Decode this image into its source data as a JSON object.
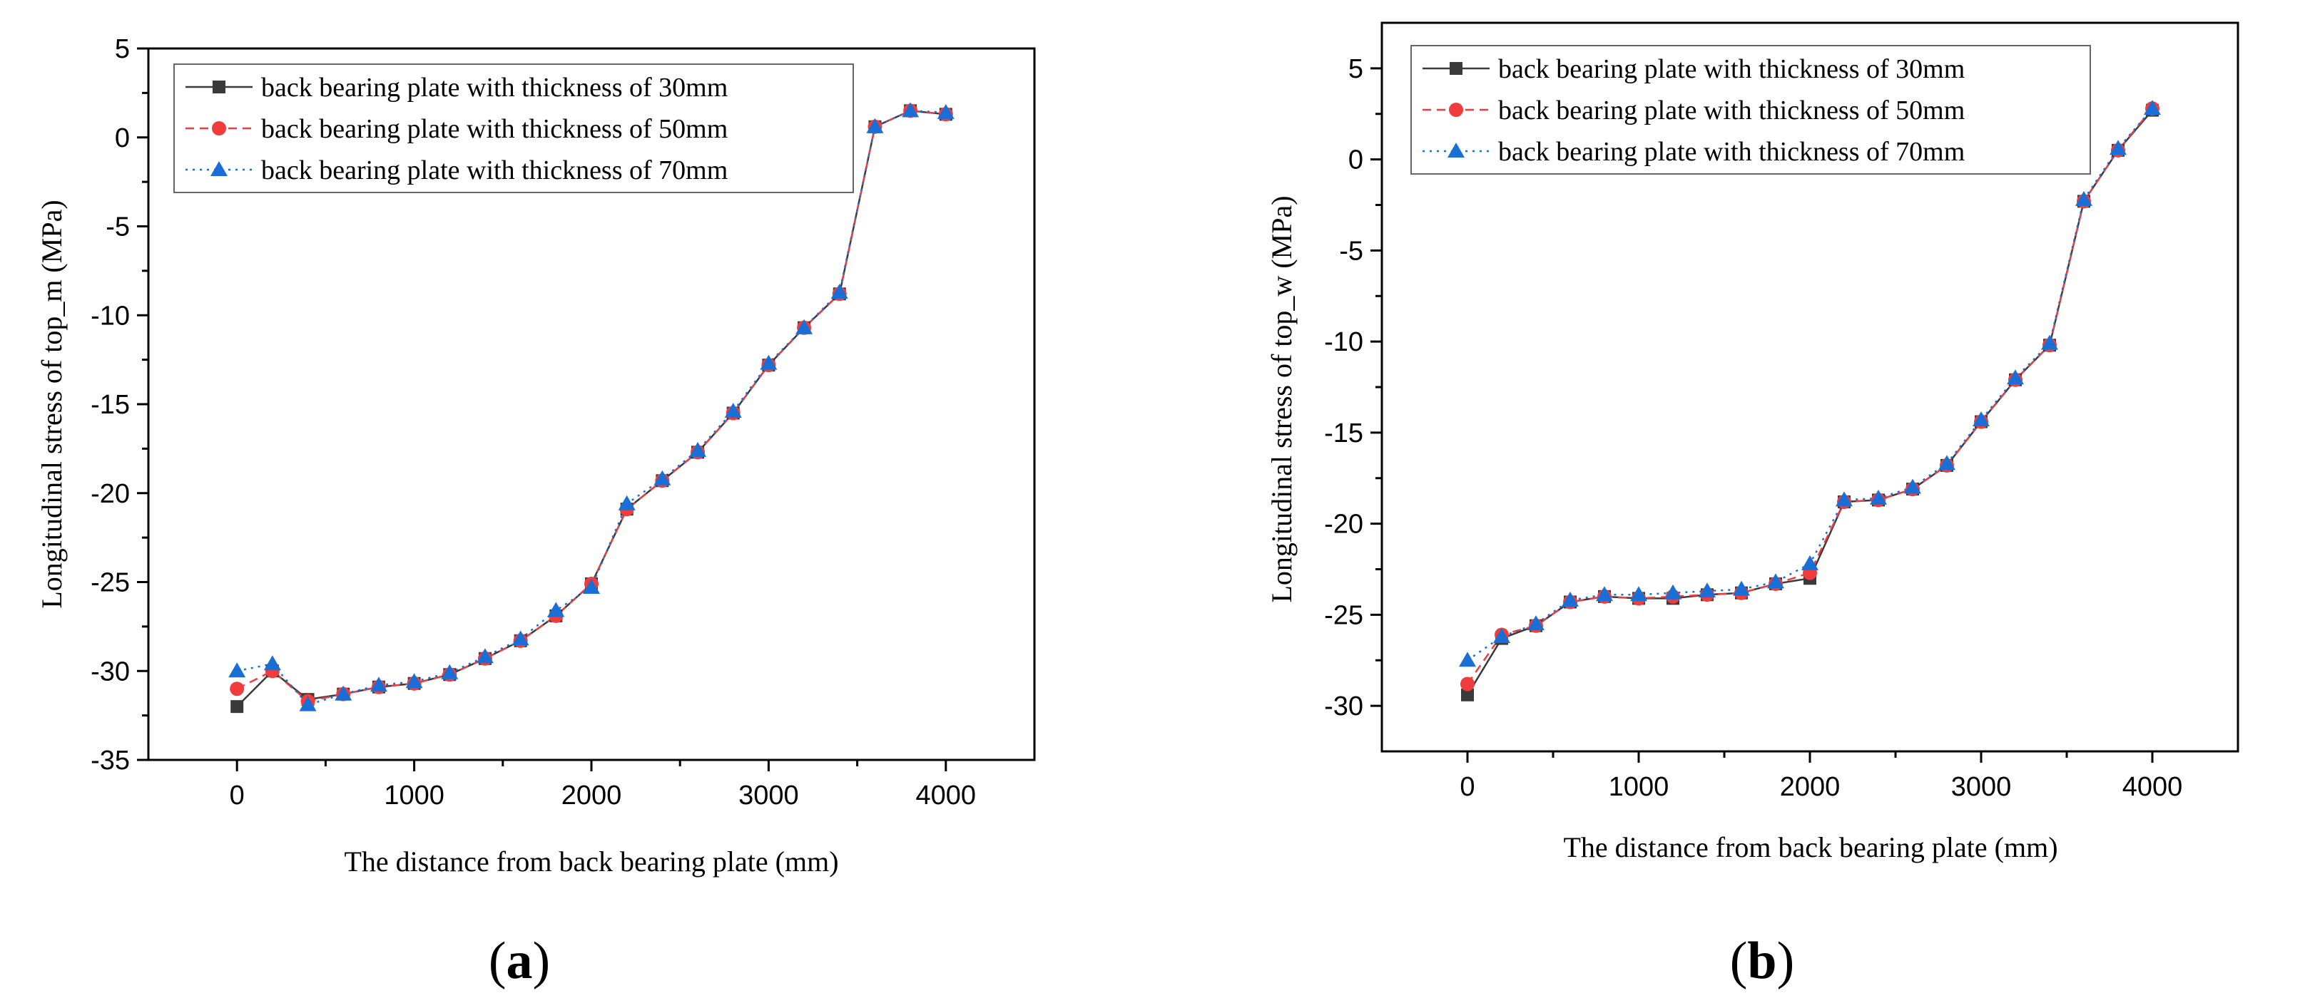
{
  "chart_data": [
    {
      "type": "line",
      "id": "a",
      "caption_letter": "a",
      "caption_open": "(",
      "caption_close": ")",
      "xlabel": "The distance from back bearing plate (mm)",
      "ylabel": "Longitudinal stress of top_m (MPa)",
      "xlim": [
        -500,
        4500
      ],
      "ylim": [
        -35,
        5
      ],
      "xticks": [
        0,
        1000,
        2000,
        3000,
        4000
      ],
      "yticks": [
        5,
        0,
        -5,
        -10,
        -15,
        -20,
        -25,
        -30,
        -35
      ],
      "x": [
        0,
        200,
        400,
        600,
        800,
        1000,
        1200,
        1400,
        1600,
        1800,
        2000,
        2200,
        2400,
        2600,
        2800,
        3000,
        3200,
        3400,
        3600,
        3800,
        4000
      ],
      "series": [
        {
          "name": "back bearing plate with thickness of 30mm",
          "color": "#3a3a3a",
          "marker": "square",
          "dash": "",
          "values": [
            -32.0,
            -30.0,
            -31.6,
            -31.3,
            -30.9,
            -30.7,
            -30.2,
            -29.3,
            -28.3,
            -26.9,
            -25.1,
            -20.9,
            -19.3,
            -17.7,
            -15.5,
            -12.8,
            -10.7,
            -8.8,
            0.6,
            1.5,
            1.3
          ]
        },
        {
          "name": "back bearing plate with thickness of 50mm",
          "color": "#f03c3c",
          "marker": "circle",
          "dash": "12,8",
          "values": [
            -31.0,
            -30.0,
            -31.7,
            -31.3,
            -30.9,
            -30.7,
            -30.2,
            -29.3,
            -28.3,
            -26.9,
            -25.1,
            -20.9,
            -19.3,
            -17.7,
            -15.5,
            -12.8,
            -10.7,
            -8.8,
            0.6,
            1.5,
            1.3
          ]
        },
        {
          "name": "back bearing plate with thickness of 70mm",
          "color": "#1a6fd6",
          "marker": "triangle",
          "dash": "3,7",
          "values": [
            -30.0,
            -29.6,
            -31.9,
            -31.3,
            -30.8,
            -30.6,
            -30.1,
            -29.2,
            -28.2,
            -26.6,
            -25.3,
            -20.6,
            -19.2,
            -17.6,
            -15.4,
            -12.7,
            -10.7,
            -8.7,
            0.6,
            1.5,
            1.4
          ]
        }
      ]
    },
    {
      "type": "line",
      "id": "b",
      "caption_letter": "b",
      "caption_open": "(",
      "caption_close": ")",
      "xlabel": "The distance from back bearing plate (mm)",
      "ylabel": "Longitudinal stress of top_w (MPa)",
      "xlim": [
        -500,
        4500
      ],
      "ylim": [
        -32.5,
        7.5
      ],
      "xticks": [
        0,
        1000,
        2000,
        3000,
        4000
      ],
      "yticks": [
        5,
        0,
        -5,
        -10,
        -15,
        -20,
        -25,
        -30
      ],
      "x": [
        0,
        200,
        400,
        600,
        800,
        1000,
        1200,
        1400,
        1600,
        1800,
        2000,
        2200,
        2400,
        2600,
        2800,
        3000,
        3200,
        3400,
        3600,
        3800,
        4000
      ],
      "series": [
        {
          "name": "back bearing plate with thickness of 30mm",
          "color": "#3a3a3a",
          "marker": "square",
          "dash": "",
          "values": [
            -29.4,
            -26.3,
            -25.6,
            -24.3,
            -24.0,
            -24.1,
            -24.1,
            -23.9,
            -23.8,
            -23.3,
            -23.0,
            -18.8,
            -18.7,
            -18.1,
            -16.8,
            -14.4,
            -12.1,
            -10.2,
            -2.3,
            0.5,
            2.7
          ]
        },
        {
          "name": "back bearing plate with thickness of 50mm",
          "color": "#f03c3c",
          "marker": "circle",
          "dash": "12,8",
          "values": [
            -28.8,
            -26.1,
            -25.6,
            -24.3,
            -24.0,
            -24.1,
            -24.0,
            -23.9,
            -23.8,
            -23.3,
            -22.7,
            -18.8,
            -18.7,
            -18.1,
            -16.8,
            -14.4,
            -12.1,
            -10.2,
            -2.3,
            0.5,
            2.8
          ]
        },
        {
          "name": "back bearing plate with thickness of 70mm",
          "color": "#1a6fd6",
          "marker": "triangle",
          "dash": "3,7",
          "values": [
            -27.5,
            -26.2,
            -25.5,
            -24.2,
            -23.9,
            -23.9,
            -23.8,
            -23.7,
            -23.6,
            -23.2,
            -22.2,
            -18.7,
            -18.6,
            -18.0,
            -16.7,
            -14.3,
            -12.0,
            -10.1,
            -2.2,
            0.6,
            2.8
          ]
        }
      ]
    }
  ]
}
